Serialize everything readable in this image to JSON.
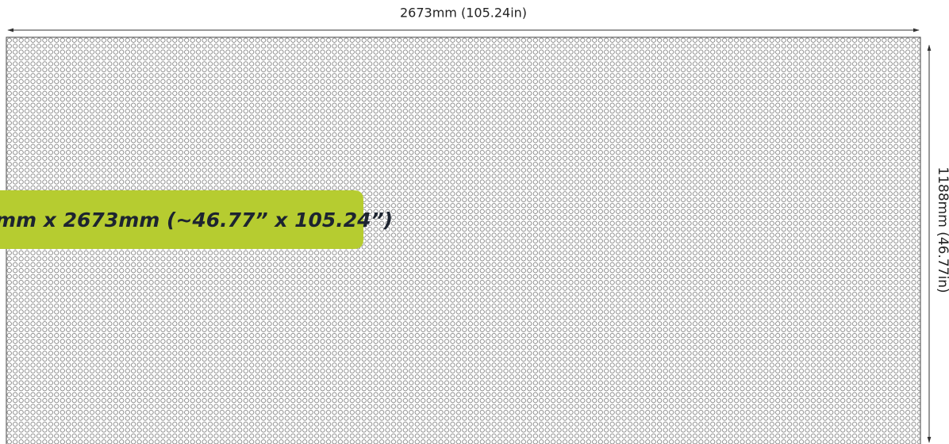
{
  "width_label": "2673mm (105.24in)",
  "height_label": "1188mm (46.77in)",
  "banner": "mm x 2673mm (~46.77” x 105.24”)"
}
